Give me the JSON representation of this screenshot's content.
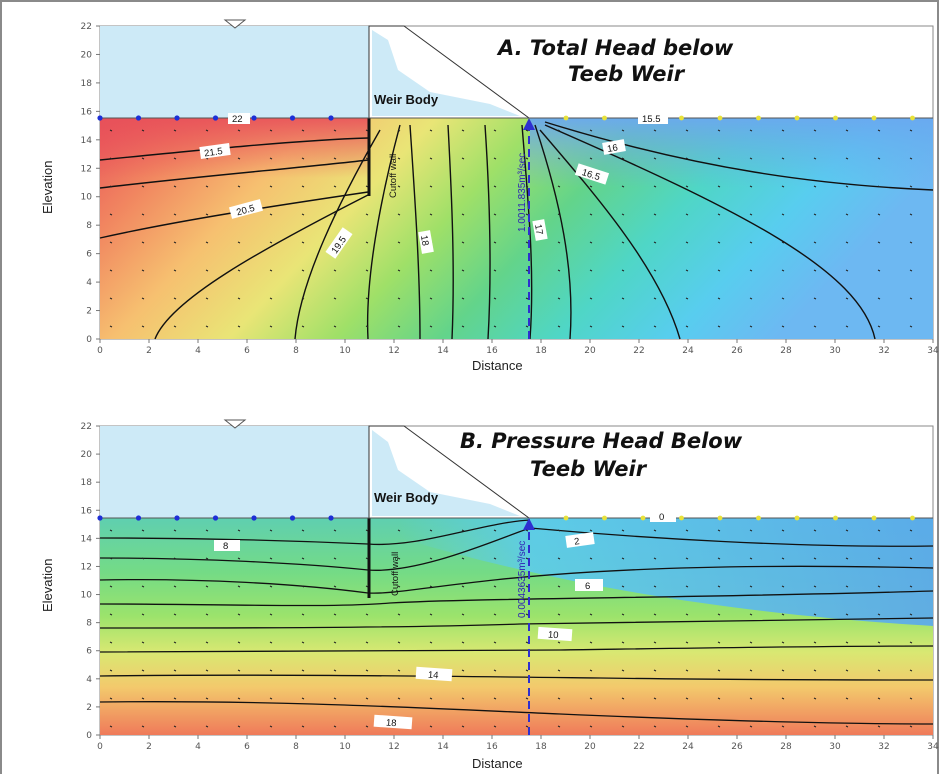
{
  "chart_data": [
    {
      "type": "heatmap",
      "title_line1": "A. Total Head below",
      "title_line2": "Teeb Weir",
      "xlabel": "Distance",
      "ylabel": "Elevation",
      "xlim": [
        0,
        34
      ],
      "ylim": [
        0,
        22
      ],
      "x_ticks": [
        0,
        2,
        4,
        6,
        8,
        10,
        12,
        14,
        16,
        18,
        20,
        22,
        24,
        26,
        28,
        30,
        32,
        34
      ],
      "y_ticks": [
        0,
        2,
        4,
        6,
        8,
        10,
        12,
        14,
        16,
        18,
        20,
        22
      ],
      "structure_label": "Weir Body",
      "cutoff_label": "Cutoff wall",
      "flux_label": "1.0011.835m³/sec",
      "contour_labels": [
        "22",
        "21.5",
        "20.5",
        "19.5",
        "18",
        "17",
        "16",
        "16.5",
        "15.5"
      ],
      "colors": {
        "high": "#e8505a",
        "mid": "#8ee36e",
        "low": "#58cdf0",
        "water": "#cdeaf7"
      }
    },
    {
      "type": "heatmap",
      "title_line1": "B. Pressure Head Below",
      "title_line2": "Teeb Weir",
      "xlabel": "Distance",
      "ylabel": "Elevation",
      "xlim": [
        0,
        34
      ],
      "ylim": [
        0,
        22
      ],
      "x_ticks": [
        0,
        2,
        4,
        6,
        8,
        10,
        12,
        14,
        16,
        18,
        20,
        22,
        24,
        26,
        28,
        30,
        32,
        34
      ],
      "y_ticks": [
        0,
        2,
        4,
        6,
        8,
        10,
        12,
        14,
        16,
        18,
        20,
        22
      ],
      "structure_label": "Weir Body",
      "cutoff_label": "Cutoff wall",
      "flux_label": "0.0043635m³/sec",
      "contour_labels": [
        "8",
        "0",
        "2",
        "6",
        "10",
        "14",
        "18"
      ],
      "colors": {
        "high": "#ef6b55",
        "mid": "#9be36c",
        "low": "#62c9ef",
        "water": "#cdeaf7"
      }
    }
  ]
}
